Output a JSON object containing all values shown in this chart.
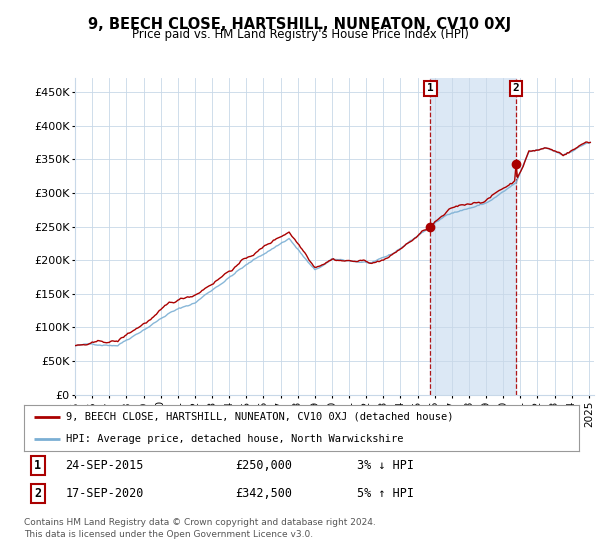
{
  "title": "9, BEECH CLOSE, HARTSHILL, NUNEATON, CV10 0XJ",
  "subtitle": "Price paid vs. HM Land Registry's House Price Index (HPI)",
  "ylim": [
    0,
    470000
  ],
  "yticks": [
    0,
    50000,
    100000,
    150000,
    200000,
    250000,
    300000,
    350000,
    400000,
    450000
  ],
  "ytick_labels": [
    "£0",
    "£50K",
    "£100K",
    "£150K",
    "£200K",
    "£250K",
    "£300K",
    "£350K",
    "£400K",
    "£450K"
  ],
  "hpi_color": "#7bafd4",
  "price_color": "#aa0000",
  "marker1_year": 2015.75,
  "marker1_value": 250000,
  "marker2_year": 2020.75,
  "marker2_value": 342500,
  "legend_label1": "9, BEECH CLOSE, HARTSHILL, NUNEATON, CV10 0XJ (detached house)",
  "legend_label2": "HPI: Average price, detached house, North Warwickshire",
  "note1_label": "1",
  "note1_date": "24-SEP-2015",
  "note1_price": "£250,000",
  "note1_pct": "3% ↓ HPI",
  "note2_label": "2",
  "note2_date": "17-SEP-2020",
  "note2_price": "£342,500",
  "note2_pct": "5% ↑ HPI",
  "footer": "Contains HM Land Registry data © Crown copyright and database right 2024.\nThis data is licensed under the Open Government Licence v3.0.",
  "bg_color": "#ffffff",
  "plot_bg": "#ffffff",
  "grid_color": "#c8d8e8",
  "shaded_color": "#dce8f5"
}
